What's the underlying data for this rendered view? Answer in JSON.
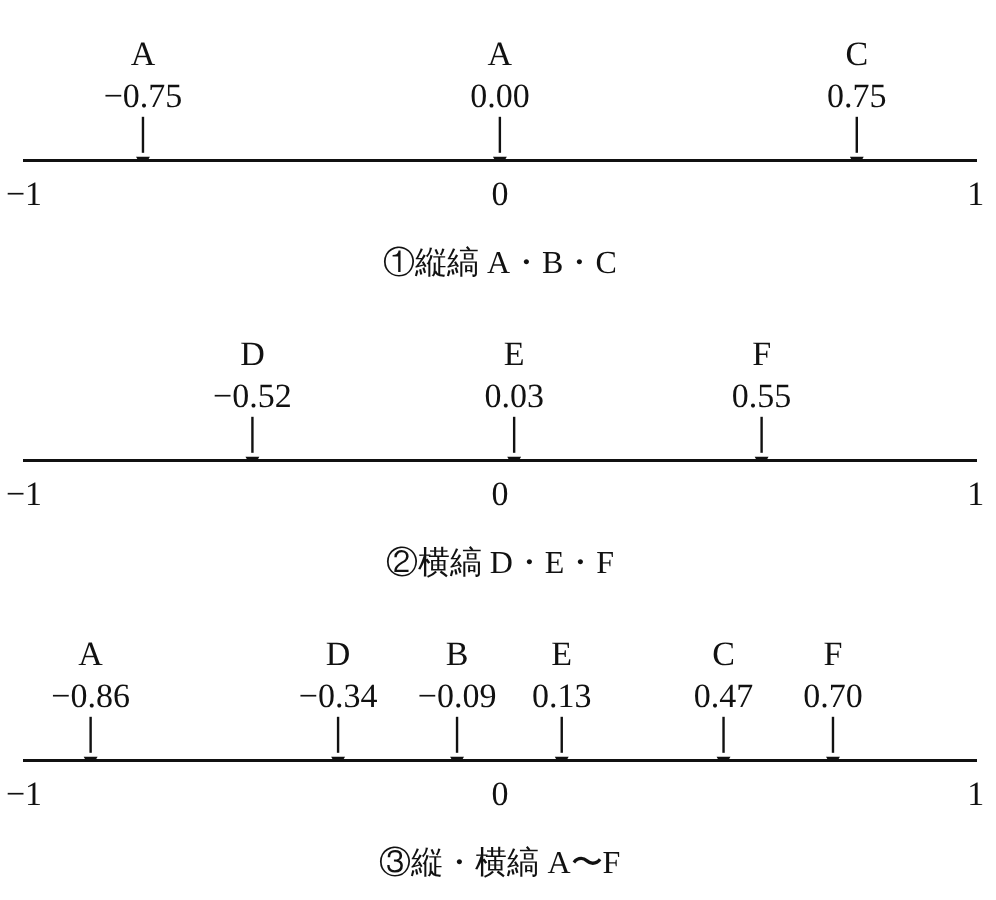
{
  "chart_data": [
    {
      "type": "other",
      "categories": [
        "A",
        "A",
        "C"
      ],
      "values": [
        -0.75,
        0.0,
        0.75
      ],
      "value_labels": [
        "−0.75",
        "0.00",
        "0.75"
      ],
      "annotations": [
        "−1",
        "0",
        "1"
      ],
      "xlabel": "①縦縞 A・B・C"
    },
    {
      "type": "other",
      "categories": [
        "D",
        "E",
        "F"
      ],
      "values": [
        -0.52,
        0.03,
        0.55
      ],
      "value_labels": [
        "−0.52",
        "0.03",
        "0.55"
      ],
      "annotations": [
        "−1",
        "0",
        "1"
      ],
      "xlabel": "②横縞 D・E・F"
    },
    {
      "type": "other",
      "categories": [
        "A",
        "D",
        "B",
        "E",
        "C",
        "F"
      ],
      "values": [
        -0.86,
        -0.34,
        -0.09,
        0.13,
        0.47,
        0.7
      ],
      "value_labels": [
        "−0.86",
        "−0.34",
        "−0.09",
        "0.13",
        "0.47",
        "0.70"
      ],
      "annotations": [
        "−1",
        "0",
        "1"
      ],
      "xlabel": "③縦・横縞 A〜F"
    }
  ]
}
